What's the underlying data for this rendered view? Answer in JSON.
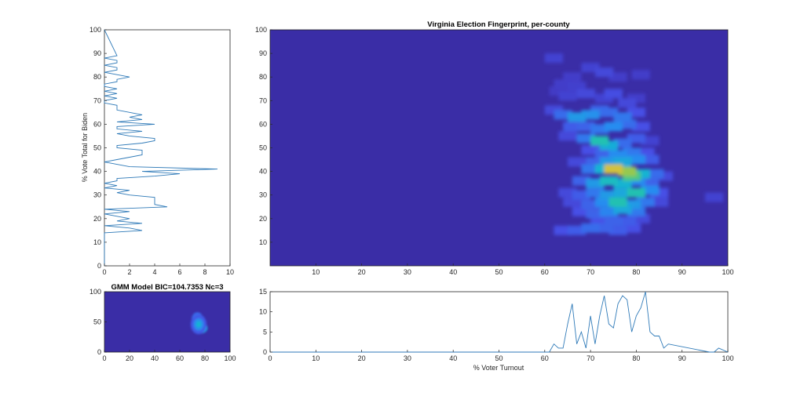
{
  "figure": {
    "background": "#ffffff",
    "plot_bg": "#3a2da6",
    "line_color": "#2f7ab8"
  },
  "chart_data": [
    {
      "id": "side",
      "type": "line",
      "orientation": "horizontal",
      "ylabel": "% Vote Total for Biden",
      "xlim": [
        0,
        10
      ],
      "ylim": [
        0,
        100
      ],
      "xticks": [
        "0",
        "2",
        "4",
        "6",
        "8",
        "10"
      ],
      "yticks": [
        "0",
        "10",
        "20",
        "30",
        "40",
        "50",
        "60",
        "70",
        "80",
        "90",
        "100"
      ],
      "series": [
        {
          "y": [
            0,
            14,
            15,
            16,
            17,
            18,
            19,
            20,
            21,
            22,
            23,
            24,
            25,
            26,
            27,
            28,
            29,
            30,
            31,
            32,
            33,
            34,
            35,
            36,
            37,
            38,
            39,
            40,
            41,
            42,
            43,
            44,
            45,
            46,
            47,
            48,
            49,
            50,
            51,
            52,
            53,
            54,
            55,
            56,
            57,
            58,
            59,
            60,
            61,
            62,
            63,
            64,
            65,
            66,
            67,
            68,
            69,
            70,
            71,
            72,
            73,
            74,
            75,
            76,
            77,
            78,
            79,
            80,
            81,
            82,
            83,
            84,
            85,
            86,
            87,
            88,
            89,
            100
          ],
          "x": [
            0,
            0,
            3,
            2,
            0,
            3,
            1,
            2,
            1,
            0,
            2,
            0,
            5,
            4,
            4,
            4,
            4,
            2,
            1,
            2,
            0,
            1,
            0,
            1,
            1,
            4,
            6,
            3,
            9,
            2,
            1,
            0,
            1,
            2,
            3,
            3,
            3,
            1,
            1,
            3,
            4,
            4,
            2,
            1,
            3,
            1,
            1,
            4,
            1,
            3,
            2,
            3,
            2,
            1,
            1,
            1,
            0,
            0,
            1,
            0,
            1,
            0,
            1,
            0,
            0,
            1,
            1,
            2,
            1,
            0,
            1,
            1,
            0,
            1,
            1,
            0,
            1,
            0
          ]
        }
      ]
    },
    {
      "id": "main",
      "type": "heatmap",
      "title": "Virginia Election Fingerprint, per-county",
      "xlim": [
        0,
        100
      ],
      "ylim": [
        0,
        100
      ],
      "xticks": [
        "10",
        "20",
        "30",
        "40",
        "50",
        "60",
        "70",
        "80",
        "90",
        "100"
      ],
      "yticks": [
        "10",
        "20",
        "30",
        "40",
        "50",
        "60",
        "70",
        "80",
        "90",
        "100"
      ],
      "cells": [
        [
          62,
          88,
          0.1
        ],
        [
          64,
          77,
          0.08
        ],
        [
          66,
          80,
          0.08
        ],
        [
          67,
          76,
          0.09
        ],
        [
          70,
          84,
          0.1
        ],
        [
          73,
          82,
          0.12
        ],
        [
          76,
          80,
          0.08
        ],
        [
          81,
          81,
          0.08
        ],
        [
          63,
          74,
          0.07
        ],
        [
          65,
          72,
          0.1
        ],
        [
          69,
          73,
          0.12
        ],
        [
          73,
          71,
          0.1
        ],
        [
          75,
          73,
          0.14
        ],
        [
          78,
          69,
          0.12
        ],
        [
          80,
          71,
          0.08
        ],
        [
          62,
          66,
          0.12
        ],
        [
          64,
          64,
          0.22
        ],
        [
          67,
          63,
          0.35
        ],
        [
          70,
          64,
          0.32
        ],
        [
          72,
          66,
          0.2
        ],
        [
          74,
          65,
          0.22
        ],
        [
          77,
          63,
          0.25
        ],
        [
          80,
          65,
          0.15
        ],
        [
          66,
          59,
          0.18
        ],
        [
          69,
          59,
          0.2
        ],
        [
          72,
          58,
          0.25
        ],
        [
          75,
          59,
          0.3
        ],
        [
          78,
          60,
          0.22
        ],
        [
          81,
          59,
          0.15
        ],
        [
          65,
          55,
          0.12
        ],
        [
          69,
          54,
          0.25
        ],
        [
          72,
          53,
          0.55
        ],
        [
          74,
          51,
          0.42
        ],
        [
          77,
          52,
          0.22
        ],
        [
          80,
          54,
          0.18
        ],
        [
          83,
          53,
          0.1
        ],
        [
          70,
          49,
          0.15
        ],
        [
          73,
          48,
          0.2
        ],
        [
          76,
          47,
          0.3
        ],
        [
          79,
          48,
          0.25
        ],
        [
          82,
          48,
          0.15
        ],
        [
          67,
          44,
          0.12
        ],
        [
          71,
          44,
          0.2
        ],
        [
          74,
          44,
          0.35
        ],
        [
          77,
          44,
          0.4
        ],
        [
          80,
          45,
          0.3
        ],
        [
          83,
          45,
          0.18
        ],
        [
          70,
          41,
          0.25
        ],
        [
          73,
          41,
          0.45
        ],
        [
          75,
          41,
          0.85
        ],
        [
          78,
          40,
          0.75
        ],
        [
          79,
          38,
          0.65
        ],
        [
          81,
          39,
          0.45
        ],
        [
          84,
          39,
          0.22
        ],
        [
          86,
          38,
          0.12
        ],
        [
          68,
          36,
          0.2
        ],
        [
          71,
          35,
          0.35
        ],
        [
          74,
          36,
          0.5
        ],
        [
          77,
          35,
          0.45
        ],
        [
          80,
          36,
          0.3
        ],
        [
          83,
          35,
          0.2
        ],
        [
          65,
          31,
          0.12
        ],
        [
          68,
          30,
          0.18
        ],
        [
          71,
          31,
          0.25
        ],
        [
          74,
          30,
          0.35
        ],
        [
          77,
          31,
          0.4
        ],
        [
          80,
          31,
          0.55
        ],
        [
          83,
          32,
          0.3
        ],
        [
          85,
          31,
          0.15
        ],
        [
          66,
          27,
          0.12
        ],
        [
          70,
          26,
          0.2
        ],
        [
          73,
          27,
          0.3
        ],
        [
          76,
          27,
          0.55
        ],
        [
          79,
          26,
          0.35
        ],
        [
          82,
          27,
          0.25
        ],
        [
          85,
          27,
          0.12
        ],
        [
          68,
          23,
          0.15
        ],
        [
          71,
          22,
          0.2
        ],
        [
          74,
          23,
          0.28
        ],
        [
          77,
          24,
          0.4
        ],
        [
          80,
          23,
          0.25
        ],
        [
          72,
          19,
          0.15
        ],
        [
          75,
          19,
          0.2
        ],
        [
          78,
          19,
          0.18
        ],
        [
          81,
          20,
          0.12
        ],
        [
          64,
          15,
          0.15
        ],
        [
          67,
          15,
          0.18
        ],
        [
          70,
          16,
          0.22
        ],
        [
          73,
          16,
          0.2
        ],
        [
          76,
          15,
          0.18
        ],
        [
          79,
          16,
          0.15
        ],
        [
          97,
          29,
          0.1
        ]
      ]
    },
    {
      "id": "gmm",
      "type": "heatmap",
      "title": "GMM Model BIC=104.7353 Nc=3",
      "xlim": [
        0,
        100
      ],
      "ylim": [
        0,
        100
      ],
      "xticks": [
        "0",
        "20",
        "40",
        "60",
        "80",
        "100"
      ],
      "yticks": [
        "0",
        "50",
        "100"
      ],
      "blobs": [
        [
          74,
          55,
          2.5,
          6,
          0.55
        ],
        [
          77,
          40,
          2.8,
          5,
          0.95
        ],
        [
          75,
          46,
          3.5,
          9,
          0.45
        ]
      ]
    },
    {
      "id": "bottom",
      "type": "line",
      "xlabel": "% Voter Turnout",
      "xlim": [
        0,
        100
      ],
      "ylim": [
        0,
        15
      ],
      "xticks": [
        "0",
        "10",
        "20",
        "30",
        "40",
        "50",
        "60",
        "70",
        "80",
        "90",
        "100"
      ],
      "yticks": [
        "0",
        "5",
        "10",
        "15"
      ],
      "series": [
        {
          "x": [
            0,
            60,
            61,
            62,
            63,
            64,
            65,
            66,
            67,
            68,
            69,
            70,
            71,
            72,
            73,
            74,
            75,
            76,
            77,
            78,
            79,
            80,
            81,
            82,
            83,
            84,
            85,
            86,
            87,
            96,
            97,
            98,
            100
          ],
          "y": [
            0,
            0,
            0,
            2,
            1,
            1,
            7,
            12,
            2,
            5,
            1,
            9,
            2,
            9,
            14,
            7,
            6,
            12,
            14,
            13,
            5,
            9,
            11,
            15,
            5,
            4,
            4,
            1,
            2,
            0,
            0,
            1,
            0
          ]
        }
      ]
    }
  ]
}
